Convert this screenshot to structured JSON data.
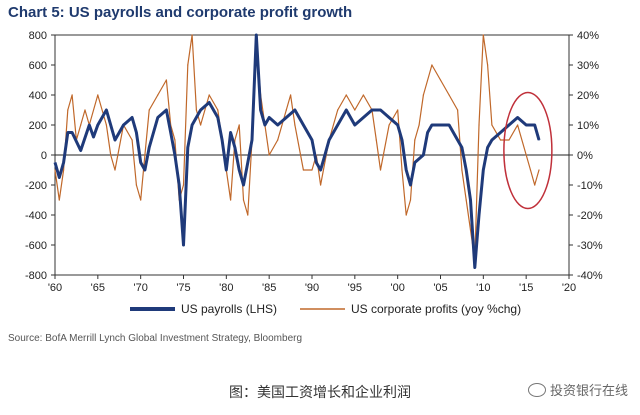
{
  "title": "Chart 5: US payrolls and corporate profit growth",
  "source": "Source: BofA Merrill Lynch Global Investment Strategy, Bloomberg",
  "caption": "图：美国工资增长和企业利润",
  "watermark": "投资银行在线",
  "colors": {
    "payrolls": "#1f3a7a",
    "profits": "#c0682a",
    "circle": "#c0303a",
    "title": "#1f3a6e"
  },
  "chart_data": {
    "type": "line",
    "title": "Chart 5: US payrolls and corporate profit growth",
    "x_tick_labels": [
      "'60",
      "'65",
      "'70",
      "'75",
      "'80",
      "'85",
      "'90",
      "'95",
      "'00",
      "'05",
      "'10",
      "'15",
      "'20"
    ],
    "x_ticks": [
      1960,
      1965,
      1970,
      1975,
      1980,
      1985,
      1990,
      1995,
      2000,
      2005,
      2010,
      2015,
      2020
    ],
    "xlim": [
      1960,
      2020
    ],
    "y_left": {
      "lim": [
        -800,
        800
      ],
      "ticks": [
        -800,
        -600,
        -400,
        -200,
        0,
        200,
        400,
        600,
        800
      ],
      "tick_labels": [
        "-800",
        "-600",
        "-400",
        "-200",
        "0",
        "200",
        "400",
        "600",
        "800"
      ]
    },
    "y_right": {
      "lim": [
        -40,
        40
      ],
      "ticks": [
        -40,
        -30,
        -20,
        -10,
        0,
        10,
        20,
        30,
        40
      ],
      "tick_labels": [
        "-40%",
        "-30%",
        "-20%",
        "-10%",
        "0%",
        "10%",
        "20%",
        "30%",
        "40%"
      ]
    },
    "series": [
      {
        "name": "US payrolls (LHS)",
        "axis": "left",
        "x": [
          1960,
          1960.5,
          1961,
          1961.5,
          1962,
          1963,
          1964,
          1964.5,
          1965,
          1966,
          1966.5,
          1967,
          1968,
          1969,
          1969.5,
          1970,
          1970.5,
          1971,
          1971.5,
          1972,
          1973,
          1973.5,
          1974,
          1974.5,
          1975,
          1975.5,
          1976,
          1977,
          1978,
          1979,
          1979.5,
          1980,
          1980.5,
          1981,
          1981.5,
          1982,
          1982.5,
          1983,
          1983.5,
          1984,
          1984.5,
          1985,
          1986,
          1987,
          1988,
          1989,
          1990,
          1990.5,
          1991,
          1991.5,
          1992,
          1993,
          1994,
          1995,
          1996,
          1997,
          1998,
          1999,
          2000,
          2000.5,
          2001,
          2001.5,
          2002,
          2003,
          2003.5,
          2004,
          2005,
          2006,
          2007,
          2007.5,
          2008,
          2008.5,
          2009,
          2009.5,
          2010,
          2010.5,
          2011,
          2012,
          2013,
          2014,
          2015,
          2016,
          2016.5
        ],
        "values": [
          -50,
          -150,
          -50,
          150,
          150,
          30,
          200,
          120,
          200,
          300,
          200,
          100,
          200,
          250,
          150,
          -50,
          -100,
          50,
          150,
          250,
          300,
          150,
          0,
          -200,
          -600,
          50,
          200,
          300,
          350,
          250,
          100,
          -100,
          150,
          50,
          -100,
          -200,
          -50,
          100,
          800,
          300,
          200,
          250,
          200,
          250,
          300,
          200,
          100,
          -50,
          -100,
          0,
          100,
          200,
          300,
          200,
          250,
          300,
          300,
          250,
          200,
          100,
          -100,
          -200,
          -50,
          0,
          150,
          200,
          200,
          200,
          100,
          50,
          -100,
          -300,
          -750,
          -400,
          -100,
          50,
          100,
          150,
          200,
          250,
          200,
          200,
          100
        ]
      },
      {
        "name": "US corporate profits (yoy %chg)",
        "axis": "right",
        "x": [
          1960,
          1960.5,
          1961,
          1961.5,
          1962,
          1962.5,
          1963,
          1963.5,
          1964,
          1965,
          1966,
          1966.5,
          1967,
          1968,
          1969,
          1969.5,
          1970,
          1970.5,
          1971,
          1972,
          1973,
          1973.5,
          1974,
          1974.5,
          1975,
          1975.5,
          1976,
          1976.5,
          1977,
          1978,
          1979,
          1980,
          1980.5,
          1981,
          1981.5,
          1982,
          1982.5,
          1983,
          1983.5,
          1984,
          1984.5,
          1985,
          1986,
          1987,
          1987.5,
          1988,
          1989,
          1990,
          1990.5,
          1991,
          1992,
          1993,
          1994,
          1995,
          1996,
          1997,
          1997.5,
          1998,
          1999,
          2000,
          2000.5,
          2001,
          2001.5,
          2002,
          2002.5,
          2003,
          2004,
          2005,
          2006,
          2007,
          2007.5,
          2008,
          2008.5,
          2009,
          2009.5,
          2010,
          2010.5,
          2011,
          2012,
          2013,
          2014,
          2015,
          2015.5,
          2016,
          2016.5
        ],
        "values": [
          -5,
          -15,
          -5,
          15,
          20,
          5,
          10,
          15,
          10,
          20,
          10,
          0,
          -5,
          10,
          5,
          -10,
          -15,
          0,
          15,
          20,
          25,
          10,
          5,
          -15,
          -10,
          30,
          40,
          15,
          10,
          20,
          15,
          -5,
          -15,
          5,
          10,
          -15,
          -20,
          5,
          40,
          20,
          10,
          0,
          5,
          15,
          20,
          10,
          -5,
          -5,
          0,
          -10,
          5,
          15,
          20,
          15,
          20,
          15,
          5,
          -5,
          10,
          15,
          -5,
          -20,
          -15,
          5,
          10,
          20,
          30,
          25,
          20,
          15,
          -5,
          -15,
          -25,
          -35,
          10,
          40,
          30,
          10,
          5,
          5,
          10,
          0,
          -5,
          -10,
          -5
        ]
      }
    ],
    "legend": [
      "US payrolls (LHS)",
      "US corporate profits (yoy %chg)"
    ],
    "legend_position": "bottom",
    "annotation": "red ellipse highlighting 2014-2016"
  }
}
